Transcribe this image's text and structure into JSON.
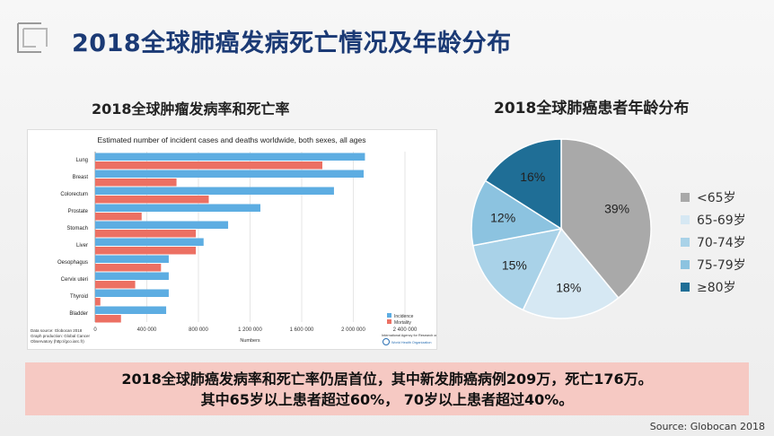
{
  "title": "2018全球肺癌发病死亡情况及年龄分布",
  "left_subtitle": "2018全球肿瘤发病率和死亡率",
  "right_subtitle": "2018全球肺癌患者年龄分布",
  "summary_line1": "2018全球肺癌发病率和死亡率仍居首位，其中新发肺癌病例209万，死亡176万。",
  "summary_line2": "其中65岁以上患者超过60%， 70岁以上患者超过40%。",
  "source": "Source: Globocan 2018",
  "chart_data": [
    {
      "type": "bar",
      "orientation": "horizontal",
      "title": "Estimated number of incident cases and deaths worldwide, both sexes, all ages",
      "xlabel": "Numbers",
      "xlim": [
        0,
        2400000
      ],
      "xticks": [
        0,
        400000,
        800000,
        1200000,
        1600000,
        2000000,
        2400000
      ],
      "xtick_labels": [
        "0",
        "400 000",
        "800 000",
        "1 200 000",
        "1 600 000",
        "2 000 000",
        "2 400 000"
      ],
      "categories": [
        "Lung",
        "Breast",
        "Colorectum",
        "Prostate",
        "Stomach",
        "Liver",
        "Oesophagus",
        "Cervix uteri",
        "Thyroid",
        "Bladder"
      ],
      "grid": true,
      "legend_position": "bottom-right",
      "series": [
        {
          "name": "Incidence",
          "color": "#5dade2",
          "values": [
            2090000,
            2080000,
            1850000,
            1280000,
            1030000,
            840000,
            570000,
            570000,
            570000,
            550000
          ]
        },
        {
          "name": "Mortality",
          "color": "#ec7063",
          "values": [
            1760000,
            630000,
            880000,
            360000,
            780000,
            780000,
            510000,
            310000,
            40000,
            200000
          ]
        }
      ],
      "footnotes": [
        "Data source: Globocan 2018",
        "Graph production: Global Cancer",
        "Observatory (http://gco.iarc.fr)"
      ],
      "org_label": "International Agency for Research on Cancer",
      "org_label2": "World Health Organization"
    },
    {
      "type": "pie",
      "title": "2018全球肺癌患者年龄分布",
      "legend_position": "right",
      "slices": [
        {
          "label": "<65岁",
          "value": 39,
          "display": "39%",
          "color": "#a9a9a9"
        },
        {
          "label": "65-69岁",
          "value": 18,
          "display": "18%",
          "color": "#d6e8f3"
        },
        {
          "label": "70-74岁",
          "value": 15,
          "display": "15%",
          "color": "#a9d2e8"
        },
        {
          "label": "75-79岁",
          "value": 12,
          "display": "12%",
          "color": "#8cc3e0"
        },
        {
          "label": "≥80岁",
          "value": 16,
          "display": "16%",
          "color": "#1f6e96"
        }
      ]
    }
  ]
}
